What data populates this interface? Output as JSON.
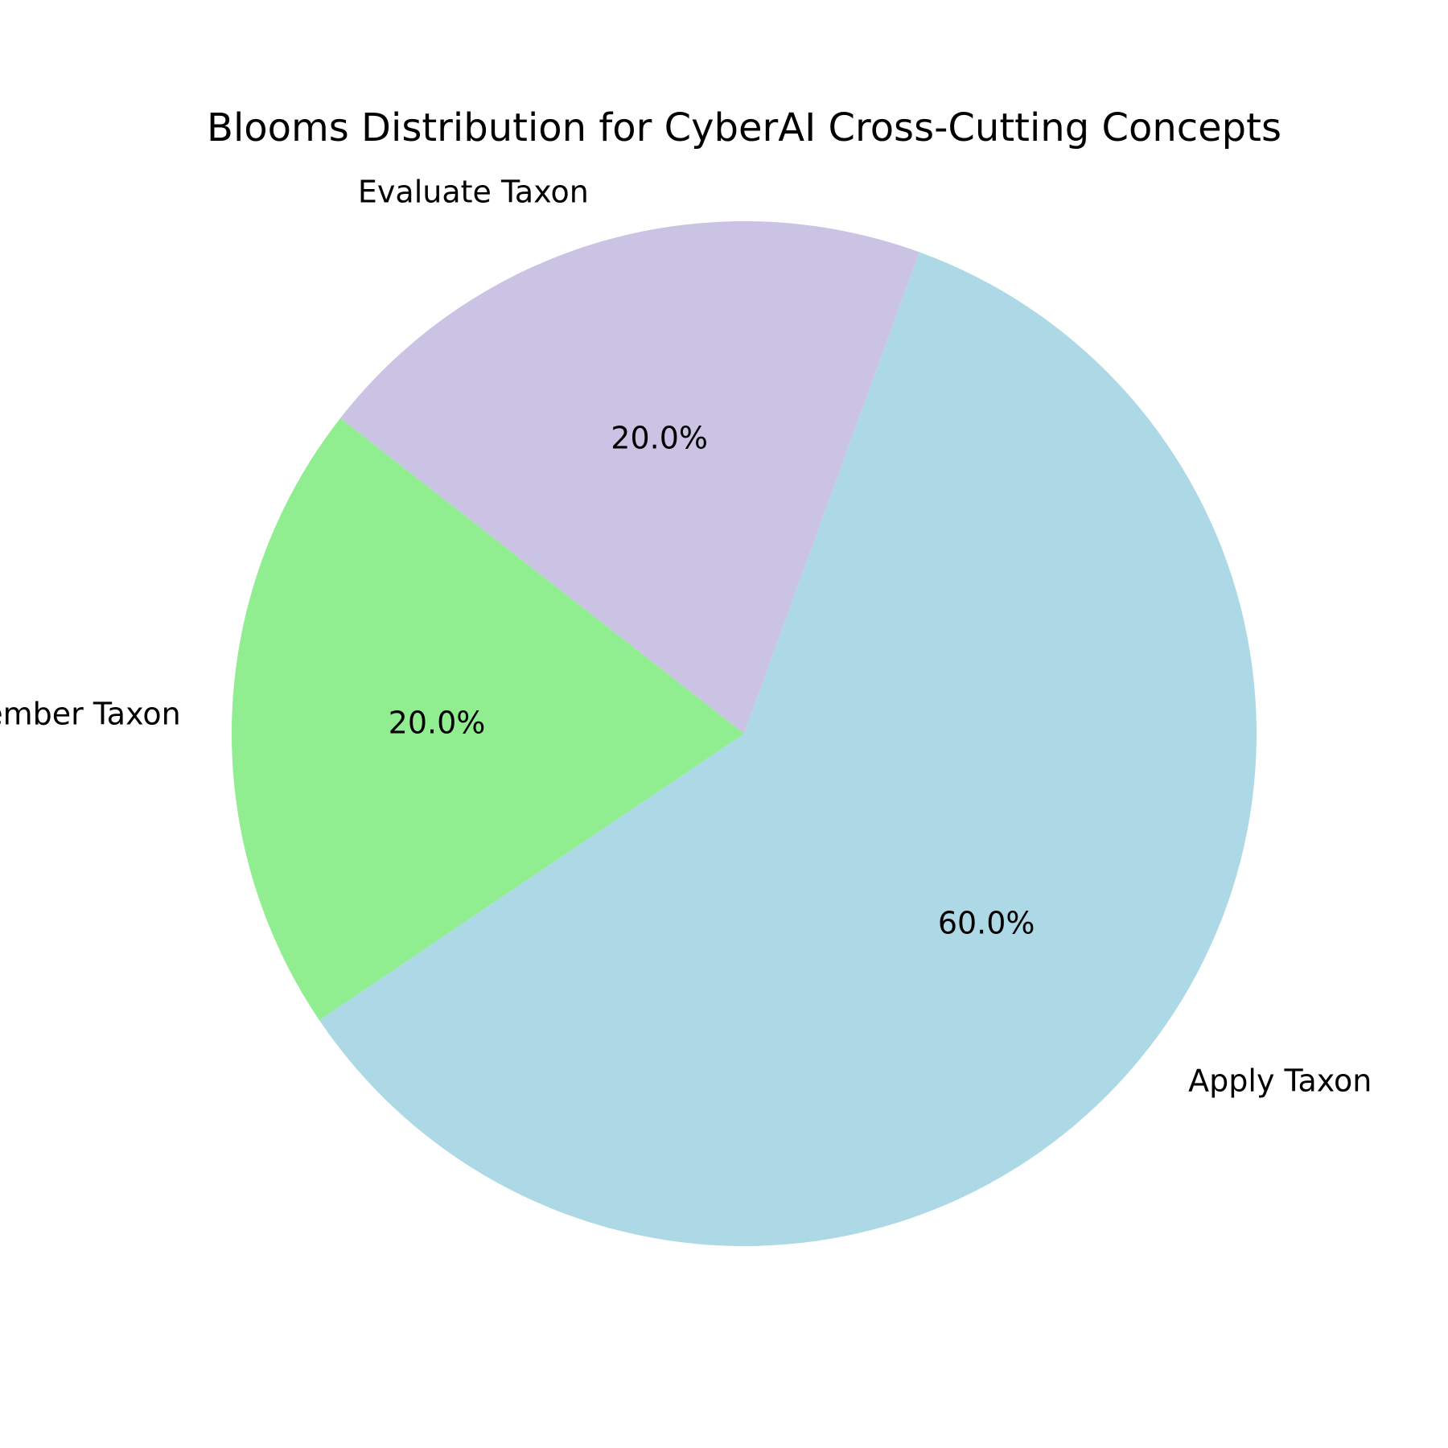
{
  "chart_data": {
    "type": "pie",
    "title": "Blooms Distribution for CyberAI Cross-Cutting Concepts",
    "start_angle_deg": 70,
    "direction": "counterclockwise",
    "slices": [
      {
        "label": "Evaluate Taxon",
        "value": 20.0,
        "pct_label": "20.0%",
        "color": "#cbc3e3"
      },
      {
        "label": "Remember Taxon",
        "value": 20.0,
        "pct_label": "20.0%",
        "color": "#90ee90"
      },
      {
        "label": "Apply Taxon",
        "value": 60.0,
        "pct_label": "60.0%",
        "color": "#add8e6"
      }
    ]
  }
}
